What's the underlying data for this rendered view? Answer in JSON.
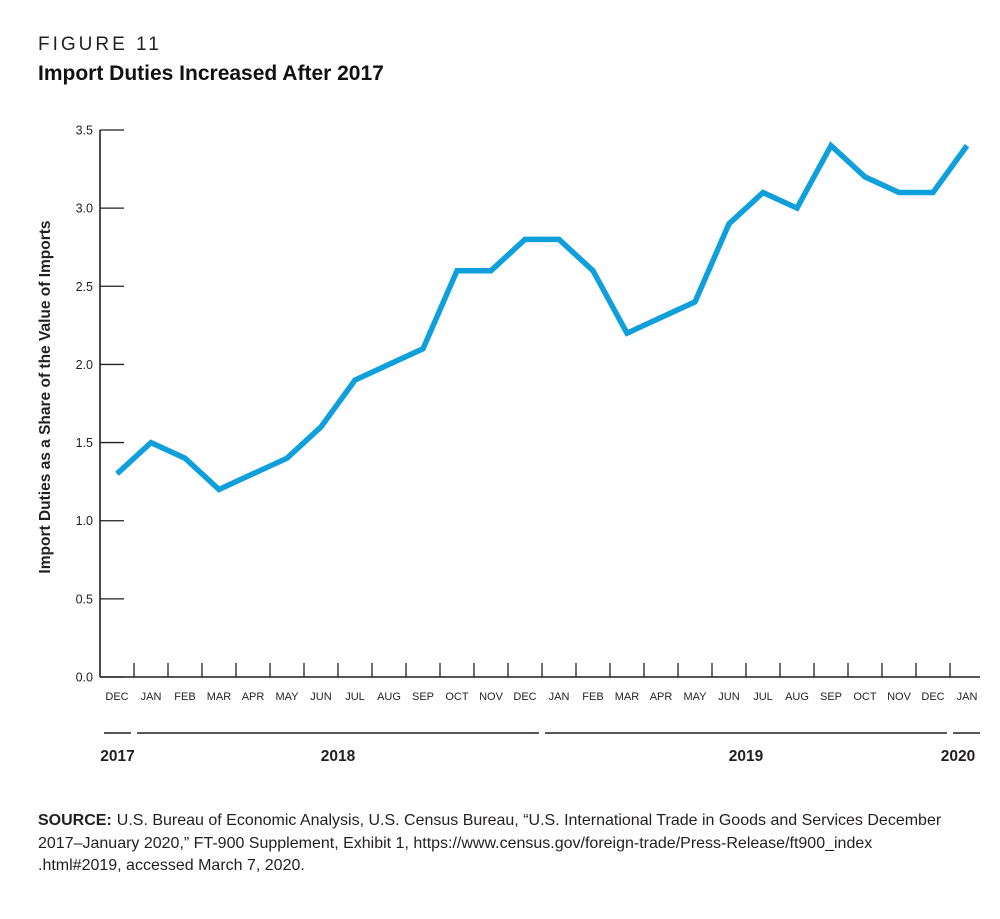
{
  "figure": {
    "label": "FIGURE 11",
    "title": "Import Duties Increased After 2017"
  },
  "chart_data": {
    "type": "line",
    "title": "Import Duties Increased After 2017",
    "xlabel": "",
    "ylabel": "Import Duties as a Share of the Value of Imports",
    "ylim": [
      0.0,
      3.5
    ],
    "ytick_labels": [
      "0.0",
      "0.5",
      "1.0",
      "1.5",
      "2.0",
      "2.5",
      "3.0",
      "3.5"
    ],
    "grid": false,
    "legend": "none",
    "line_color": "#0FA0DC",
    "axis_color": "#231f20",
    "categories": [
      "DEC",
      "JAN",
      "FEB",
      "MAR",
      "APR",
      "MAY",
      "JUN",
      "JUL",
      "AUG",
      "SEP",
      "OCT",
      "NOV",
      "DEC",
      "JAN",
      "FEB",
      "MAR",
      "APR",
      "MAY",
      "JUN",
      "JUL",
      "AUG",
      "SEP",
      "OCT",
      "NOV",
      "DEC",
      "JAN"
    ],
    "values": [
      1.3,
      1.5,
      1.4,
      1.2,
      1.3,
      1.4,
      1.6,
      1.9,
      2.0,
      2.1,
      2.6,
      2.6,
      2.8,
      2.8,
      2.6,
      2.2,
      2.3,
      2.4,
      2.9,
      3.1,
      3.0,
      3.4,
      3.2,
      3.1,
      3.1,
      3.4
    ],
    "year_groups": [
      {
        "label": "2017",
        "start_index": 0,
        "end_index": 0
      },
      {
        "label": "2018",
        "start_index": 1,
        "end_index": 12
      },
      {
        "label": "2019",
        "start_index": 13,
        "end_index": 24
      },
      {
        "label": "2020",
        "start_index": 25,
        "end_index": 25
      }
    ]
  },
  "source": {
    "label": "SOURCE:",
    "lines": [
      "U.S. Bureau of Economic Analysis, U.S. Census Bureau, “U.S. International Trade in Goods and Services December",
      "2017–January 2020,” FT-900 Supplement, Exhibit 1, https://www.census.gov/foreign-trade/Press-Release/ft900_index",
      ".html#2019, accessed March 7, 2020."
    ]
  }
}
